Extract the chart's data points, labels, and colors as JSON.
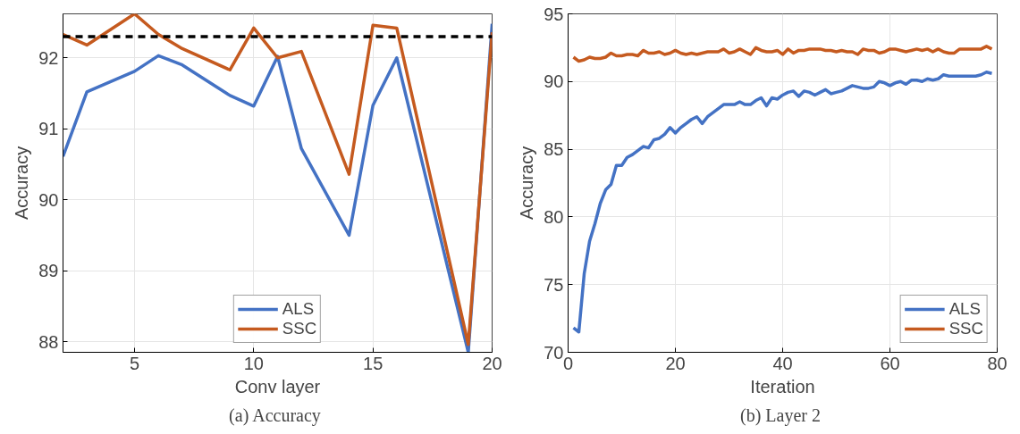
{
  "chart_data": [
    {
      "type": "line",
      "xlabel": "Conv layer",
      "ylabel": "Accuracy",
      "x": [
        2,
        3,
        5,
        6,
        7,
        9,
        10,
        11,
        12,
        14,
        15,
        16,
        19,
        20
      ],
      "xlim": [
        2,
        20
      ],
      "xticks": [
        5,
        10,
        15,
        20
      ],
      "ylim": [
        87.85,
        92.62
      ],
      "yticks": [
        88,
        89,
        90,
        91,
        92
      ],
      "grid": true,
      "legend": "bottom",
      "series": [
        {
          "name": "ALS",
          "color": "#4472c4",
          "values": [
            90.61,
            91.52,
            91.81,
            92.03,
            91.9,
            91.47,
            91.32,
            92.02,
            90.72,
            89.5,
            91.33,
            92.0,
            87.85,
            92.48
          ]
        },
        {
          "name": "SSC",
          "color": "#c55a1f",
          "values": [
            92.33,
            92.18,
            92.62,
            92.33,
            92.13,
            91.83,
            92.42,
            92.0,
            92.09,
            90.36,
            92.46,
            92.42,
            87.96,
            92.36
          ]
        }
      ],
      "ref_lines": [
        {
          "axis": "y",
          "value": 92.3,
          "color": "#000000",
          "line_style": "dashed"
        }
      ],
      "annotations": [
        "(a)  Accuracy"
      ]
    },
    {
      "type": "line",
      "xlabel": "Iteration",
      "ylabel": "Accuracy",
      "x": [
        1,
        2,
        3,
        4,
        5,
        6,
        7,
        8,
        9,
        10,
        11,
        12,
        13,
        14,
        15,
        16,
        17,
        18,
        19,
        20,
        21,
        22,
        23,
        24,
        25,
        26,
        27,
        28,
        29,
        30,
        31,
        32,
        33,
        34,
        35,
        36,
        37,
        38,
        39,
        40,
        41,
        42,
        43,
        44,
        45,
        46,
        47,
        48,
        49,
        50,
        51,
        52,
        53,
        54,
        55,
        56,
        57,
        58,
        59,
        60,
        61,
        62,
        63,
        64,
        65,
        66,
        67,
        68,
        69,
        70,
        71,
        72,
        73,
        74,
        75,
        76,
        77,
        78,
        79
      ],
      "xlim": [
        0,
        80
      ],
      "xticks": [
        0,
        20,
        40,
        60,
        80
      ],
      "ylim": [
        70,
        95
      ],
      "yticks": [
        70,
        75,
        80,
        85,
        90,
        95
      ],
      "grid": true,
      "legend": "bottom right",
      "series": [
        {
          "name": "ALS",
          "color": "#4472c4",
          "values": [
            71.8,
            71.5,
            75.8,
            78.2,
            79.5,
            81.0,
            82.0,
            82.4,
            83.8,
            83.8,
            84.4,
            84.6,
            84.9,
            85.2,
            85.1,
            85.7,
            85.8,
            86.1,
            86.6,
            86.2,
            86.6,
            86.9,
            87.2,
            87.4,
            86.9,
            87.4,
            87.7,
            88.0,
            88.3,
            88.3,
            88.3,
            88.5,
            88.3,
            88.3,
            88.6,
            88.8,
            88.2,
            88.8,
            88.7,
            89.0,
            89.2,
            89.3,
            88.9,
            89.3,
            89.2,
            89.0,
            89.2,
            89.4,
            89.1,
            89.2,
            89.3,
            89.5,
            89.7,
            89.6,
            89.5,
            89.5,
            89.6,
            90.0,
            89.9,
            89.7,
            89.9,
            90.0,
            89.8,
            90.1,
            90.1,
            90.0,
            90.2,
            90.1,
            90.2,
            90.5,
            90.4,
            90.4,
            90.4,
            90.4,
            90.4,
            90.4,
            90.5,
            90.7,
            90.6
          ]
        },
        {
          "name": "SSC",
          "color": "#c55a1f",
          "values": [
            91.8,
            91.5,
            91.6,
            91.8,
            91.7,
            91.7,
            91.8,
            92.1,
            91.9,
            91.9,
            92.0,
            92.0,
            91.9,
            92.3,
            92.1,
            92.1,
            92.2,
            92.0,
            92.1,
            92.3,
            92.1,
            92.0,
            92.1,
            92.0,
            92.1,
            92.2,
            92.2,
            92.2,
            92.4,
            92.1,
            92.2,
            92.4,
            92.2,
            92.0,
            92.5,
            92.3,
            92.2,
            92.2,
            92.3,
            92.0,
            92.4,
            92.1,
            92.3,
            92.3,
            92.4,
            92.4,
            92.4,
            92.3,
            92.3,
            92.2,
            92.3,
            92.2,
            92.2,
            92.0,
            92.4,
            92.3,
            92.3,
            92.1,
            92.2,
            92.4,
            92.4,
            92.3,
            92.2,
            92.3,
            92.4,
            92.3,
            92.4,
            92.2,
            92.4,
            92.2,
            92.1,
            92.1,
            92.4,
            92.4,
            92.4,
            92.4,
            92.4,
            92.6,
            92.4
          ]
        }
      ],
      "annotations": [
        "(b)  Layer 2"
      ]
    }
  ]
}
